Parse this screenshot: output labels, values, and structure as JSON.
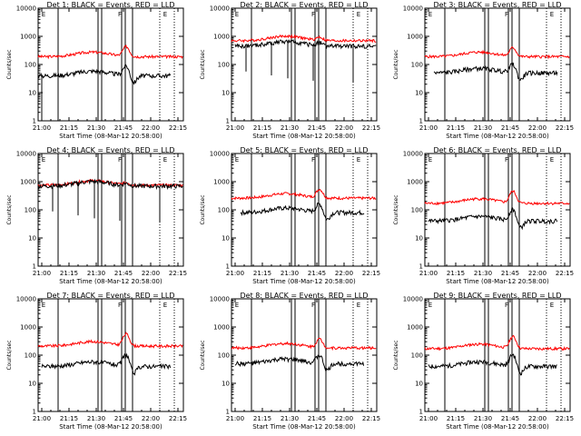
{
  "figure": {
    "x_axis_title": "Start Time (08-Mar-12 20:58:00)",
    "y_axis_title": "Counts/sec",
    "x_tick_labels": [
      "21:00",
      "21:15",
      "21:30",
      "21:45",
      "22:00",
      "22:15"
    ],
    "y_tick_labels": [
      "1",
      "10",
      "100",
      "1000",
      "10000"
    ],
    "colors": {
      "events": "#000000",
      "lld": "#ff0000",
      "axes": "#000000",
      "background": "#ffffff"
    }
  },
  "chart_data": [
    {
      "type": "line",
      "title": "Det 1: BLACK = Events, RED = LLD",
      "series": [
        {
          "name": "Events",
          "color": "#000000"
        },
        {
          "name": "LLD",
          "color": "#ff0000"
        }
      ],
      "xlim_min": [
        0,
        80
      ],
      "ylim": [
        1,
        10000
      ],
      "ylog": true,
      "events_level": 40,
      "lld_level": 190,
      "flare": 2.2,
      "dip": true,
      "zigzag": false,
      "events_start_min": 0,
      "events_end_min": 73,
      "lld_start_min": 0,
      "lld_end_min": 80,
      "legend_letters": [
        "E",
        "F",
        "E"
      ]
    },
    {
      "type": "line",
      "title": "Det 2: BLACK = Events, RED = LLD",
      "series": [
        {
          "name": "Events",
          "color": "#000000"
        },
        {
          "name": "LLD",
          "color": "#ff0000"
        }
      ],
      "xlim_min": [
        0,
        80
      ],
      "ylim": [
        1,
        10000
      ],
      "ylog": true,
      "events_level": 450,
      "lld_level": 700,
      "flare": 1.3,
      "dip": false,
      "zigzag": true,
      "events_start_min": 2,
      "events_end_min": 80,
      "lld_start_min": 0,
      "lld_end_min": 80,
      "legend_letters": [
        "E",
        "F",
        "E"
      ]
    },
    {
      "type": "line",
      "title": "Det 3: BLACK = Events, RED = LLD",
      "series": [
        {
          "name": "Events",
          "color": "#000000"
        },
        {
          "name": "LLD",
          "color": "#ff0000"
        }
      ],
      "xlim_min": [
        0,
        80
      ],
      "ylim": [
        1,
        10000
      ],
      "ylog": true,
      "events_level": 50,
      "lld_level": 190,
      "flare": 2.0,
      "dip": true,
      "zigzag": false,
      "events_start_min": 5,
      "events_end_min": 73,
      "lld_start_min": 0,
      "lld_end_min": 80,
      "legend_letters": [
        "E",
        "F",
        "E"
      ]
    },
    {
      "type": "line",
      "title": "Det 4: BLACK = Events, RED = LLD",
      "series": [
        {
          "name": "Events",
          "color": "#000000"
        },
        {
          "name": "LLD",
          "color": "#ff0000"
        }
      ],
      "xlim_min": [
        0,
        80
      ],
      "ylim": [
        1,
        10000
      ],
      "ylog": true,
      "events_level": 700,
      "lld_level": 750,
      "flare": 1.2,
      "dip": false,
      "zigzag": true,
      "events_start_min": 0,
      "events_end_min": 80,
      "lld_start_min": 0,
      "lld_end_min": 80,
      "legend_letters": [
        "E",
        "F",
        "E"
      ]
    },
    {
      "type": "line",
      "title": "Det 5: BLACK = Events, RED = LLD",
      "series": [
        {
          "name": "Events",
          "color": "#000000"
        },
        {
          "name": "LLD",
          "color": "#ff0000"
        }
      ],
      "xlim_min": [
        0,
        80
      ],
      "ylim": [
        1,
        10000
      ],
      "ylog": true,
      "events_level": 80,
      "lld_level": 260,
      "flare": 2.0,
      "dip": true,
      "zigzag": false,
      "events_start_min": 5,
      "events_end_min": 73,
      "lld_start_min": 0,
      "lld_end_min": 80,
      "legend_letters": [
        "E",
        "F",
        "E"
      ]
    },
    {
      "type": "line",
      "title": "Det 6: BLACK = Events, RED = LLD",
      "series": [
        {
          "name": "Events",
          "color": "#000000"
        },
        {
          "name": "LLD",
          "color": "#ff0000"
        }
      ],
      "xlim_min": [
        0,
        80
      ],
      "ylim": [
        1,
        10000
      ],
      "ylog": true,
      "events_level": 40,
      "lld_level": 170,
      "flare": 2.6,
      "dip": true,
      "zigzag": false,
      "events_start_min": 2,
      "events_end_min": 73,
      "lld_start_min": 0,
      "lld_end_min": 80,
      "legend_letters": [
        "E",
        "F",
        "E"
      ]
    },
    {
      "type": "line",
      "title": "Det 7: BLACK = Events, RED = LLD",
      "series": [
        {
          "name": "Events",
          "color": "#000000"
        },
        {
          "name": "LLD",
          "color": "#ff0000"
        }
      ],
      "xlim_min": [
        0,
        80
      ],
      "ylim": [
        1,
        10000
      ],
      "ylog": true,
      "events_level": 40,
      "lld_level": 210,
      "flare": 2.6,
      "dip": true,
      "zigzag": false,
      "events_start_min": 2,
      "events_end_min": 73,
      "lld_start_min": 0,
      "lld_end_min": 80,
      "legend_letters": [
        "E",
        "F",
        "E"
      ]
    },
    {
      "type": "line",
      "title": "Det 8: BLACK = Events, RED = LLD",
      "series": [
        {
          "name": "Events",
          "color": "#000000"
        },
        {
          "name": "LLD",
          "color": "#ff0000"
        }
      ],
      "xlim_min": [
        0,
        80
      ],
      "ylim": [
        1,
        10000
      ],
      "ylog": true,
      "events_level": 50,
      "lld_level": 180,
      "flare": 2.0,
      "dip": true,
      "zigzag": false,
      "events_start_min": 2,
      "events_end_min": 73,
      "lld_start_min": 0,
      "lld_end_min": 80,
      "legend_letters": [
        "E",
        "F",
        "E"
      ]
    },
    {
      "type": "line",
      "title": "Det 9: BLACK = Events, RED = LLD",
      "series": [
        {
          "name": "Events",
          "color": "#000000"
        },
        {
          "name": "LLD",
          "color": "#ff0000"
        }
      ],
      "xlim_min": [
        0,
        80
      ],
      "ylim": [
        1,
        10000
      ],
      "ylog": true,
      "events_level": 40,
      "lld_level": 170,
      "flare": 2.6,
      "dip": true,
      "zigzag": false,
      "events_start_min": 2,
      "events_end_min": 73,
      "lld_start_min": 0,
      "lld_end_min": 80,
      "legend_letters": [
        "E",
        "F",
        "E"
      ]
    }
  ],
  "markers": {
    "solid_min": [
      11,
      33,
      35,
      46,
      48,
      52
    ],
    "dotted_min": [
      67,
      75
    ]
  }
}
